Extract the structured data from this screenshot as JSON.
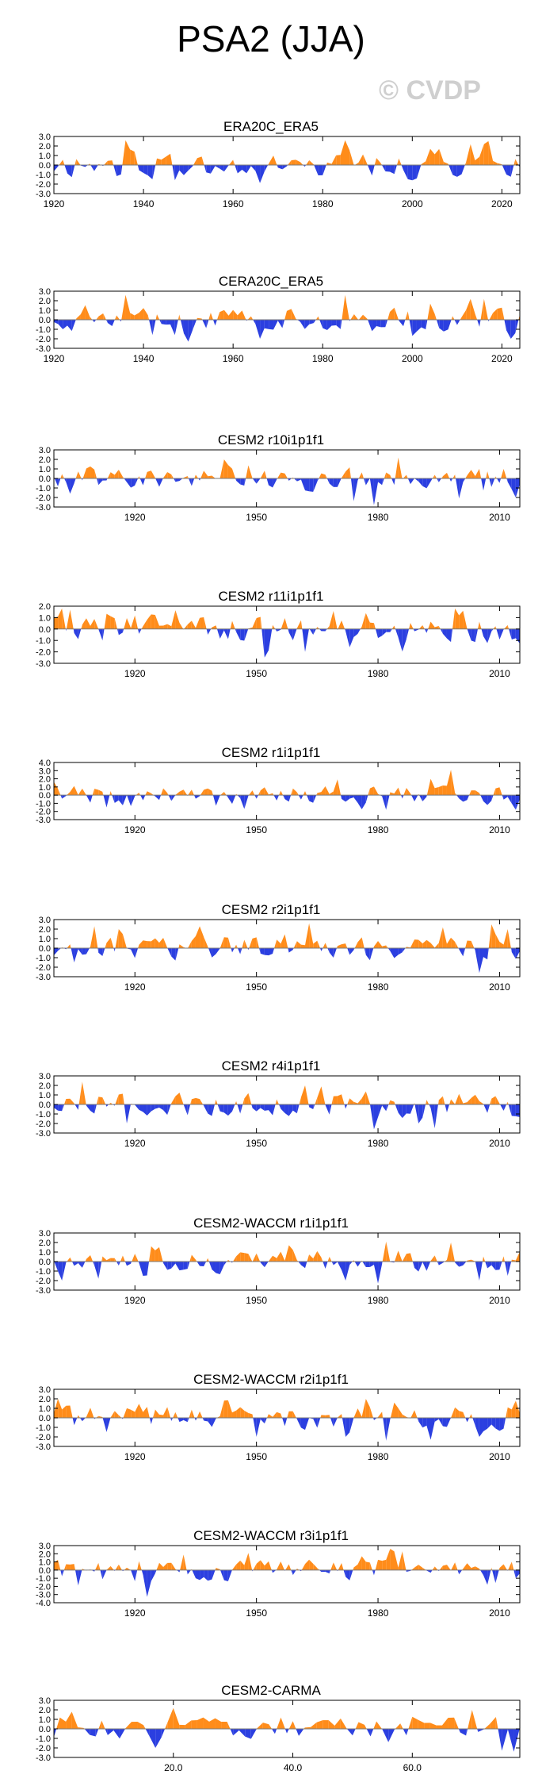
{
  "title": "PSA2 (JJA)",
  "watermark": "© CVDP",
  "colors": {
    "positive": "#ff8c1a",
    "negative": "#2b3fe0",
    "frame": "#000000",
    "zero": "#7a7a7a"
  },
  "chart_data": [
    {
      "type": "area",
      "title": "ERA20C_ERA5",
      "xlim": [
        1920,
        2024
      ],
      "ylim": [
        -3.0,
        3.0
      ],
      "yticks": [
        3.0,
        2.0,
        1.0,
        0.0,
        -1.0,
        -2.0,
        -3.0
      ],
      "xticks": [
        1920,
        1940,
        1960,
        1980,
        2000,
        2020
      ],
      "xticklabels": [
        "1920",
        "1940",
        "1960",
        "1980",
        "2000",
        "2020"
      ],
      "seed": 11,
      "peaks": [
        [
          1936,
          2.6
        ],
        [
          1942,
          -1.5
        ],
        [
          1947,
          -1.6
        ],
        [
          1966,
          -1.9
        ],
        [
          1985,
          2.6
        ],
        [
          1991,
          -1.1
        ],
        [
          2000,
          -1.6
        ],
        [
          2004,
          1.7
        ],
        [
          2013,
          2.2
        ],
        [
          2016,
          2.2
        ],
        [
          2021,
          -1.0
        ]
      ],
      "yticklabels": [
        "3.0",
        "2.0",
        "1.0",
        "0.0",
        "-1.0",
        "-2.0",
        "-3.0"
      ]
    },
    {
      "type": "area",
      "title": "CERA20C_ERA5",
      "xlim": [
        1920,
        2024
      ],
      "ylim": [
        -3.0,
        3.0
      ],
      "yticks": [
        3.0,
        2.0,
        1.0,
        0.0,
        -1.0,
        -2.0,
        -3.0
      ],
      "xticks": [
        1920,
        1940,
        1960,
        1980,
        2000,
        2020
      ],
      "xticklabels": [
        "1920",
        "1940",
        "1960",
        "1980",
        "2000",
        "2020"
      ],
      "seed": 12,
      "peaks": [
        [
          1936,
          2.6
        ],
        [
          1942,
          -1.6
        ],
        [
          1947,
          -1.6
        ],
        [
          1966,
          -2.0
        ],
        [
          1985,
          2.6
        ],
        [
          1991,
          -1.2
        ],
        [
          2000,
          -1.7
        ],
        [
          2004,
          1.7
        ],
        [
          2013,
          2.2
        ],
        [
          2016,
          2.2
        ],
        [
          2021,
          -1.1
        ]
      ],
      "yticklabels": [
        "3.0",
        "2.0",
        "1.0",
        "0.0",
        "-1.0",
        "-2.0",
        "-3.0"
      ]
    },
    {
      "type": "area",
      "title": "CESM2 r10i1p1f1",
      "xlim": [
        1900,
        2015
      ],
      "ylim": [
        -3.0,
        3.0
      ],
      "yticks": [
        3.0,
        2.0,
        1.0,
        0.0,
        -1.0,
        -2.0,
        -3.0
      ],
      "xticks": [
        1920,
        1950,
        1980,
        2010
      ],
      "xticklabels": [
        "1920",
        "1950",
        "1980",
        "2010"
      ],
      "seed": 13,
      "peaks": [
        [
          1904,
          -1.6
        ],
        [
          1942,
          2.0
        ],
        [
          1974,
          -2.4
        ],
        [
          1979,
          -2.8
        ],
        [
          1985,
          2.2
        ],
        [
          2000,
          -2.1
        ],
        [
          2011,
          1.0
        ],
        [
          2014,
          -2.0
        ]
      ],
      "yticklabels": [
        "3.0",
        "2.0",
        "1.0",
        "0.0",
        "-1.0",
        "-2.0",
        "-3.0"
      ]
    },
    {
      "type": "area",
      "title": "CESM2 r11i1p1f1",
      "xlim": [
        1900,
        2015
      ],
      "ylim": [
        -3.0,
        2.0
      ],
      "yticks": [
        2.0,
        1.0,
        0.0,
        -1.0,
        -2.0,
        -3.0
      ],
      "xticks": [
        1920,
        1950,
        1980,
        2010
      ],
      "xticklabels": [
        "1920",
        "1950",
        "1980",
        "2010"
      ],
      "seed": 14,
      "peaks": [
        [
          1902,
          1.8
        ],
        [
          1904,
          1.7
        ],
        [
          1952,
          -2.5
        ],
        [
          1962,
          -2.0
        ],
        [
          1999,
          1.8
        ],
        [
          2001,
          1.6
        ],
        [
          1973,
          -1.6
        ],
        [
          2014,
          -0.8
        ]
      ],
      "yticklabels": [
        "2.0",
        "1.0",
        "0.0",
        "-1.0",
        "-2.0",
        "-3.0"
      ]
    },
    {
      "type": "area",
      "title": "CESM2 r1i1p1f1",
      "xlim": [
        1900,
        2015
      ],
      "ylim": [
        -3.0,
        4.0
      ],
      "yticks": [
        4.0,
        3.0,
        2.0,
        1.0,
        0.0,
        -1.0,
        -2.0,
        -3.0
      ],
      "xticks": [
        1920,
        1950,
        1980,
        2010
      ],
      "xticklabels": [
        "1920",
        "1950",
        "1980",
        "2010"
      ],
      "seed": 15,
      "peaks": [
        [
          1998,
          3.1
        ],
        [
          1982,
          -1.8
        ],
        [
          1940,
          -1.3
        ],
        [
          1993,
          2.0
        ],
        [
          2014,
          -1.8
        ],
        [
          1913,
          -1.5
        ]
      ],
      "yticklabels": [
        "4.0",
        "3.0",
        "2.0",
        "1.0",
        "0.0",
        "-1.0",
        "-2.0",
        "-3.0"
      ]
    },
    {
      "type": "area",
      "title": "CESM2 r2i1p1f1",
      "xlim": [
        1900,
        2015
      ],
      "ylim": [
        -3.0,
        3.0
      ],
      "yticks": [
        3.0,
        2.0,
        1.0,
        0.0,
        -1.0,
        -2.0,
        -3.0
      ],
      "xticks": [
        1920,
        1950,
        1980,
        2010
      ],
      "xticklabels": [
        "1920",
        "1950",
        "1980",
        "2010"
      ],
      "seed": 16,
      "peaks": [
        [
          1910,
          2.3
        ],
        [
          1916,
          2.0
        ],
        [
          1936,
          2.3
        ],
        [
          1963,
          2.6
        ],
        [
          1996,
          2.2
        ],
        [
          2005,
          -2.6
        ],
        [
          2008,
          2.5
        ],
        [
          2012,
          2.0
        ],
        [
          1905,
          -1.5
        ]
      ],
      "yticklabels": [
        "3.0",
        "2.0",
        "1.0",
        "0.0",
        "-1.0",
        "-2.0",
        "-3.0"
      ]
    },
    {
      "type": "area",
      "title": "CESM2 r4i1p1f1",
      "xlim": [
        1900,
        2015
      ],
      "ylim": [
        -3.0,
        3.0
      ],
      "yticks": [
        3.0,
        2.0,
        1.0,
        0.0,
        -1.0,
        -2.0,
        -3.0
      ],
      "xticks": [
        1920,
        1950,
        1980,
        2010
      ],
      "xticklabels": [
        "1920",
        "1950",
        "1980",
        "2010"
      ],
      "seed": 17,
      "peaks": [
        [
          1907,
          2.4
        ],
        [
          1918,
          -2.0
        ],
        [
          1962,
          2.0
        ],
        [
          1966,
          1.9
        ],
        [
          1979,
          -2.6
        ],
        [
          1990,
          -2.0
        ],
        [
          1994,
          -2.5
        ],
        [
          2013,
          -1.2
        ]
      ],
      "yticklabels": [
        "3.0",
        "2.0",
        "1.0",
        "0.0",
        "-1.0",
        "-2.0",
        "-3.0"
      ]
    },
    {
      "type": "area",
      "title": "CESM2-WACCM r1i1p1f1",
      "xlim": [
        1900,
        2015
      ],
      "ylim": [
        -3.0,
        3.0
      ],
      "yticks": [
        3.0,
        2.0,
        1.0,
        0.0,
        -1.0,
        -2.0,
        -3.0
      ],
      "xticks": [
        1920,
        1950,
        1980,
        2010
      ],
      "xticklabels": [
        "1920",
        "1950",
        "1980",
        "2010"
      ],
      "seed": 18,
      "peaks": [
        [
          1902,
          -2.0
        ],
        [
          1924,
          1.6
        ],
        [
          1980,
          -2.3
        ],
        [
          1982,
          2.1
        ],
        [
          1998,
          2.0
        ],
        [
          2005,
          -2.0
        ],
        [
          2012,
          -1.5
        ],
        [
          1911,
          -1.8
        ]
      ],
      "yticklabels": [
        "3.0",
        "2.0",
        "1.0",
        "0.0",
        "-1.0",
        "-2.0",
        "-3.0"
      ]
    },
    {
      "type": "area",
      "title": "CESM2-WACCM r2i1p1f1",
      "xlim": [
        1900,
        2015
      ],
      "ylim": [
        -3.0,
        3.0
      ],
      "yticks": [
        3.0,
        2.0,
        1.0,
        0.0,
        -1.0,
        -2.0,
        -3.0
      ],
      "xticks": [
        1920,
        1950,
        1980,
        2010
      ],
      "xticklabels": [
        "1920",
        "1950",
        "1980",
        "2010"
      ],
      "seed": 19,
      "peaks": [
        [
          1901,
          2.0
        ],
        [
          1950,
          -2.0
        ],
        [
          1972,
          -2.0
        ],
        [
          1977,
          2.0
        ],
        [
          1982,
          -2.4
        ],
        [
          1993,
          -2.3
        ],
        [
          2005,
          -2.0
        ],
        [
          2014,
          1.8
        ]
      ],
      "yticklabels": [
        "3.0",
        "2.0",
        "1.0",
        "0.0",
        "-1.0",
        "-2.0",
        "-3.0"
      ]
    },
    {
      "type": "area",
      "title": "CESM2-WACCM r3i1p1f1",
      "xlim": [
        1900,
        2015
      ],
      "ylim": [
        -4.0,
        3.0
      ],
      "yticks": [
        3.0,
        2.0,
        1.0,
        0.0,
        -1.0,
        -2.0,
        -3.0,
        -4.0
      ],
      "xticks": [
        1920,
        1950,
        1980,
        2010
      ],
      "xticklabels": [
        "1920",
        "1950",
        "1980",
        "2010"
      ],
      "seed": 20,
      "peaks": [
        [
          1923,
          -3.3
        ],
        [
          1932,
          1.9
        ],
        [
          1948,
          2.1
        ],
        [
          1983,
          2.6
        ],
        [
          1986,
          2.3
        ],
        [
          2007,
          -1.8
        ],
        [
          1906,
          -1.9
        ],
        [
          2014,
          -1.0
        ]
      ],
      "yticklabels": [
        "3.0",
        "2.0",
        "1.0",
        "0.0",
        "-1.0",
        "-2.0",
        "-3.0",
        "-4.0"
      ]
    },
    {
      "type": "area",
      "title": "CESM2-CARMA",
      "xlim": [
        0,
        78
      ],
      "ylim": [
        -3.0,
        3.0
      ],
      "yticks": [
        3.0,
        2.0,
        1.0,
        0.0,
        -1.0,
        -2.0,
        -3.0
      ],
      "xticks": [
        20,
        40,
        60
      ],
      "xticklabels": [
        "20.0",
        "40.0",
        "60.0"
      ],
      "seed": 21,
      "peaks": [
        [
          1,
          1.2
        ],
        [
          3,
          1.8
        ],
        [
          17,
          -2.0
        ],
        [
          20,
          2.2
        ],
        [
          38,
          1.2
        ],
        [
          56,
          -1.4
        ],
        [
          70,
          2.0
        ],
        [
          75,
          -2.3
        ],
        [
          77,
          -2.4
        ]
      ],
      "yticklabels": [
        "3.0",
        "2.0",
        "1.0",
        "0.0",
        "-1.0",
        "-2.0",
        "-3.0"
      ]
    }
  ]
}
